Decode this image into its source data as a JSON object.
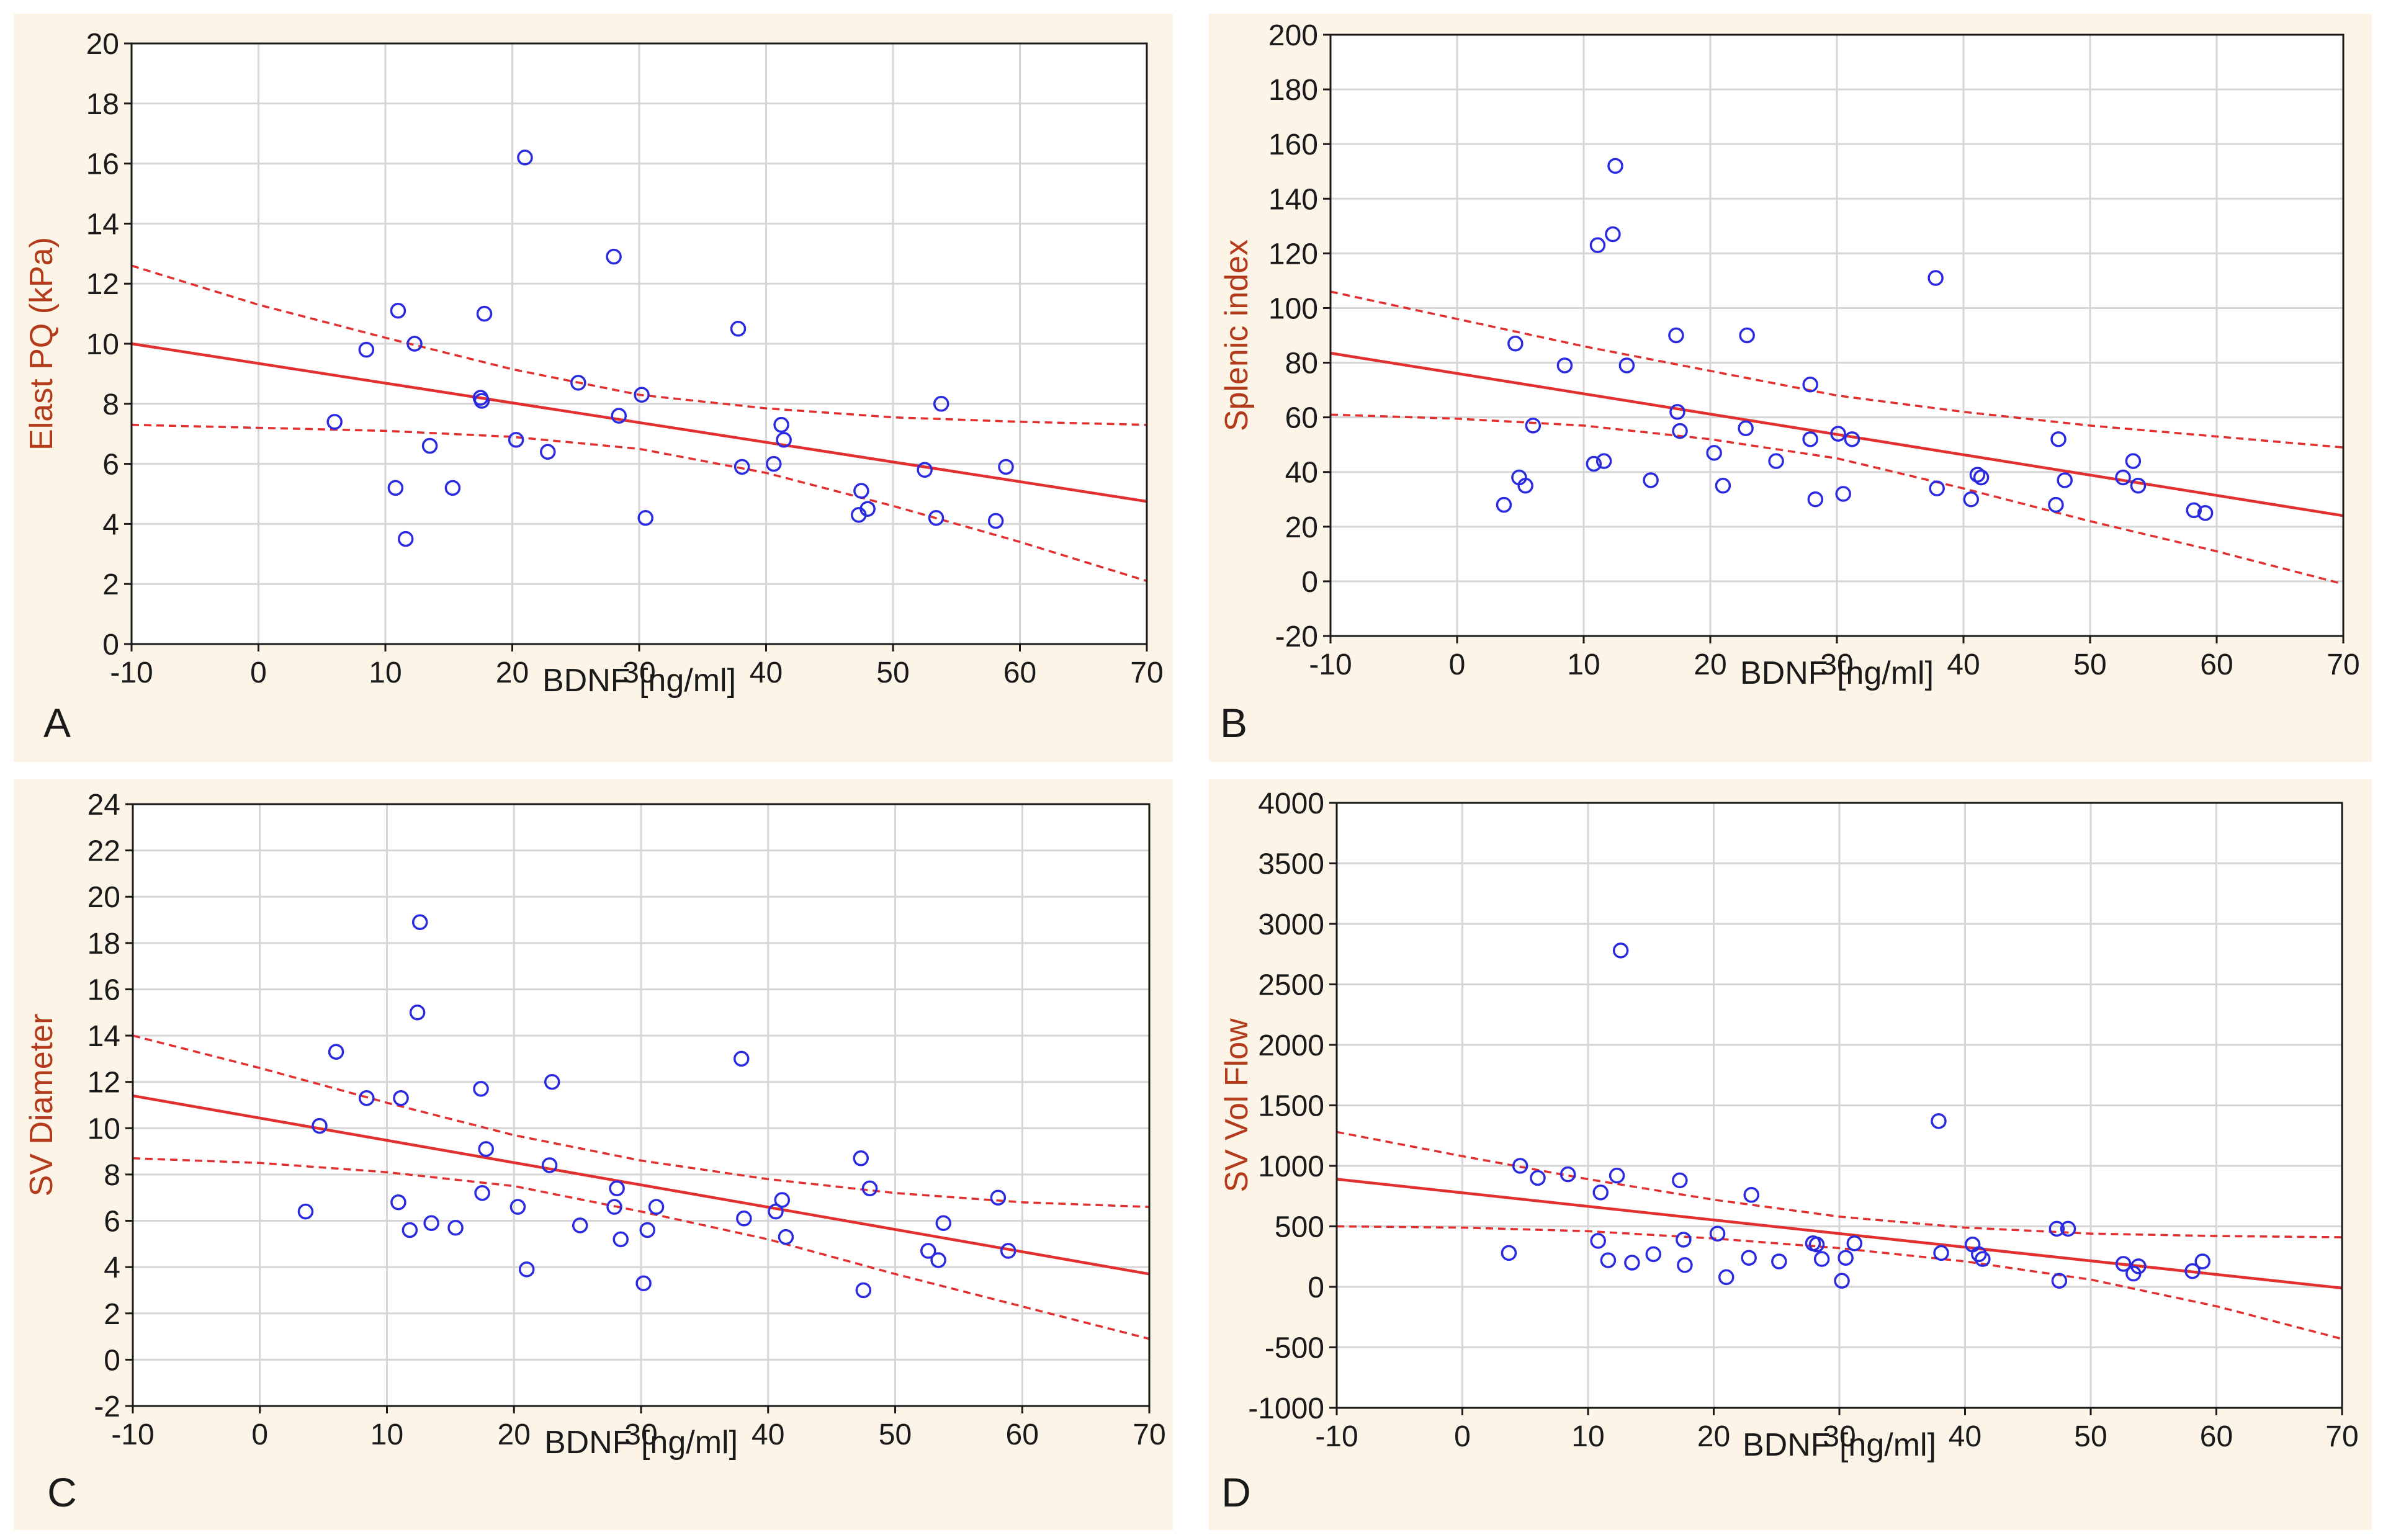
{
  "colors": {
    "panel_background": "#fcf4e6",
    "plot_background": "#ffffff",
    "grid": "#d6d6d6",
    "axis": "#1a1a1a",
    "point": "#2a2ae0",
    "fit": "#e23030",
    "ylabel": "#b33a1a"
  },
  "chart_data": [
    {
      "type": "scatter",
      "panel_letter": "A",
      "xlabel": "BDNF [ng/ml]",
      "ylabel": "Elast PQ (kPa)",
      "xlim": [
        -10,
        70
      ],
      "ylim": [
        0,
        20
      ],
      "xticks": [
        "-10",
        "0",
        "10",
        "20",
        "30",
        "40",
        "50",
        "60",
        "70"
      ],
      "yticks": [
        "0",
        "2",
        "4",
        "6",
        "8",
        "10",
        "12",
        "14",
        "16",
        "18",
        "20"
      ],
      "grid": true,
      "points": [
        [
          6,
          7.4
        ],
        [
          8.5,
          9.8
        ],
        [
          10.8,
          5.2
        ],
        [
          11,
          11.1
        ],
        [
          11.6,
          3.5
        ],
        [
          12.3,
          10
        ],
        [
          13.5,
          6.6
        ],
        [
          15.3,
          5.2
        ],
        [
          17.5,
          8.2
        ],
        [
          17.6,
          8.1
        ],
        [
          17.8,
          11
        ],
        [
          20.3,
          6.8
        ],
        [
          21,
          16.2
        ],
        [
          22.8,
          6.4
        ],
        [
          25.2,
          8.7
        ],
        [
          28,
          12.9
        ],
        [
          28.4,
          7.6
        ],
        [
          30.2,
          8.3
        ],
        [
          30.5,
          4.2
        ],
        [
          37.8,
          10.5
        ],
        [
          38.1,
          5.9
        ],
        [
          40.6,
          6
        ],
        [
          41.2,
          7.3
        ],
        [
          41.4,
          6.8
        ],
        [
          47.3,
          4.3
        ],
        [
          47.5,
          5.1
        ],
        [
          48,
          4.5
        ],
        [
          52.5,
          5.8
        ],
        [
          53.4,
          4.2
        ],
        [
          53.8,
          8
        ],
        [
          58.1,
          4.1
        ],
        [
          58.9,
          5.9
        ]
      ],
      "fit": {
        "x": [
          -10,
          70
        ],
        "y": [
          10,
          4.75
        ]
      },
      "ci_upper": [
        [
          -10,
          12.6
        ],
        [
          0,
          11.3
        ],
        [
          10,
          10.2
        ],
        [
          20,
          9.15
        ],
        [
          30,
          8.3
        ],
        [
          40,
          7.85
        ],
        [
          50,
          7.55
        ],
        [
          60,
          7.4
        ],
        [
          70,
          7.3
        ]
      ],
      "ci_lower": [
        [
          -10,
          7.3
        ],
        [
          0,
          7.2
        ],
        [
          10,
          7.1
        ],
        [
          20,
          6.9
        ],
        [
          30,
          6.5
        ],
        [
          40,
          5.7
        ],
        [
          50,
          4.6
        ],
        [
          60,
          3.4
        ],
        [
          70,
          2.1
        ]
      ]
    },
    {
      "type": "scatter",
      "panel_letter": "B",
      "xlabel": "BDNF [ng/ml]",
      "ylabel": "Splenic index",
      "xlim": [
        -10,
        70
      ],
      "ylim": [
        -20,
        200
      ],
      "xticks": [
        "-10",
        "0",
        "10",
        "20",
        "30",
        "40",
        "50",
        "60",
        "70"
      ],
      "yticks": [
        "-20",
        "0",
        "20",
        "40",
        "60",
        "80",
        "100",
        "120",
        "140",
        "160",
        "180",
        "200"
      ],
      "grid": true,
      "points": [
        [
          3.7,
          28
        ],
        [
          4.6,
          87
        ],
        [
          4.9,
          38
        ],
        [
          5.4,
          35
        ],
        [
          6,
          57
        ],
        [
          8.5,
          79
        ],
        [
          10.8,
          43
        ],
        [
          11.1,
          123
        ],
        [
          11.6,
          44
        ],
        [
          12.3,
          127
        ],
        [
          12.5,
          152
        ],
        [
          13.4,
          79
        ],
        [
          15.3,
          37
        ],
        [
          17.3,
          90
        ],
        [
          17.4,
          62
        ],
        [
          17.6,
          55
        ],
        [
          20.3,
          47
        ],
        [
          21,
          35
        ],
        [
          22.8,
          56
        ],
        [
          22.9,
          90
        ],
        [
          25.2,
          44
        ],
        [
          27.9,
          72
        ],
        [
          27.9,
          52
        ],
        [
          28.3,
          30
        ],
        [
          30.1,
          54
        ],
        [
          30.5,
          32
        ],
        [
          31.2,
          52
        ],
        [
          37.8,
          111
        ],
        [
          37.9,
          34
        ],
        [
          40.6,
          30
        ],
        [
          41.1,
          39
        ],
        [
          41.4,
          38
        ],
        [
          47.3,
          28
        ],
        [
          47.5,
          52
        ],
        [
          48,
          37
        ],
        [
          52.6,
          38
        ],
        [
          53.4,
          44
        ],
        [
          53.8,
          35
        ],
        [
          58.2,
          26
        ],
        [
          59.1,
          25
        ]
      ],
      "fit": {
        "x": [
          -10,
          70
        ],
        "y": [
          83.5,
          24
        ]
      },
      "ci_upper": [
        [
          -10,
          106
        ],
        [
          0,
          96
        ],
        [
          10,
          86
        ],
        [
          20,
          77
        ],
        [
          30,
          68
        ],
        [
          40,
          62
        ],
        [
          50,
          57
        ],
        [
          60,
          53
        ],
        [
          70,
          49
        ]
      ],
      "ci_lower": [
        [
          -10,
          61
        ],
        [
          0,
          59.5
        ],
        [
          10,
          57
        ],
        [
          20,
          52
        ],
        [
          30,
          45
        ],
        [
          40,
          34
        ],
        [
          50,
          22
        ],
        [
          60,
          11
        ],
        [
          70,
          -1
        ]
      ]
    },
    {
      "type": "scatter",
      "panel_letter": "C",
      "xlabel": "BDNF [ng/ml]",
      "ylabel": "SV Diameter",
      "xlim": [
        -10,
        70
      ],
      "ylim": [
        -2,
        24
      ],
      "xticks": [
        "-10",
        "0",
        "10",
        "20",
        "30",
        "40",
        "50",
        "60",
        "70"
      ],
      "yticks": [
        "-2",
        "0",
        "2",
        "4",
        "6",
        "8",
        "10",
        "12",
        "14",
        "16",
        "18",
        "20",
        "22",
        "24"
      ],
      "grid": true,
      "points": [
        [
          3.6,
          6.4
        ],
        [
          4.7,
          10.1
        ],
        [
          6,
          13.3
        ],
        [
          8.4,
          11.3
        ],
        [
          10.9,
          6.8
        ],
        [
          11.1,
          11.3
        ],
        [
          11.8,
          5.6
        ],
        [
          12.4,
          15
        ],
        [
          12.6,
          18.9
        ],
        [
          13.5,
          5.9
        ],
        [
          15.4,
          5.7
        ],
        [
          17.4,
          11.7
        ],
        [
          17.5,
          7.2
        ],
        [
          17.8,
          9.1
        ],
        [
          20.3,
          6.6
        ],
        [
          21,
          3.9
        ],
        [
          22.8,
          8.4
        ],
        [
          23,
          12
        ],
        [
          25.2,
          5.8
        ],
        [
          27.9,
          6.6
        ],
        [
          28.1,
          7.4
        ],
        [
          28.4,
          5.2
        ],
        [
          30.2,
          3.3
        ],
        [
          30.5,
          5.6
        ],
        [
          31.2,
          6.6
        ],
        [
          37.9,
          13
        ],
        [
          38.1,
          6.1
        ],
        [
          40.6,
          6.4
        ],
        [
          41.1,
          6.9
        ],
        [
          41.4,
          5.3
        ],
        [
          47.3,
          8.7
        ],
        [
          47.5,
          3
        ],
        [
          48,
          7.4
        ],
        [
          52.6,
          4.7
        ],
        [
          53.4,
          4.3
        ],
        [
          53.8,
          5.9
        ],
        [
          58.1,
          7
        ],
        [
          58.9,
          4.7
        ]
      ],
      "fit": {
        "x": [
          -10,
          70
        ],
        "y": [
          11.4,
          3.7
        ]
      },
      "ci_upper": [
        [
          -10,
          14
        ],
        [
          0,
          12.6
        ],
        [
          10,
          11.1
        ],
        [
          20,
          9.7
        ],
        [
          30,
          8.6
        ],
        [
          40,
          7.8
        ],
        [
          50,
          7.2
        ],
        [
          60,
          6.8
        ],
        [
          70,
          6.6
        ]
      ],
      "ci_lower": [
        [
          -10,
          8.7
        ],
        [
          0,
          8.5
        ],
        [
          10,
          8.1
        ],
        [
          20,
          7.5
        ],
        [
          30,
          6.4
        ],
        [
          40,
          5.2
        ],
        [
          50,
          3.7
        ],
        [
          60,
          2.3
        ],
        [
          70,
          0.9
        ]
      ]
    },
    {
      "type": "scatter",
      "panel_letter": "D",
      "xlabel": "BDNF [ng/ml]",
      "ylabel": "SV Vol Flow",
      "xlim": [
        -10,
        70
      ],
      "ylim": [
        -1000,
        4000
      ],
      "xticks": [
        "-10",
        "0",
        "10",
        "20",
        "30",
        "40",
        "50",
        "60",
        "70"
      ],
      "yticks": [
        "-1000",
        "-500",
        "0",
        "500",
        "1000",
        "1500",
        "2000",
        "2500",
        "3000",
        "3500",
        "4000"
      ],
      "grid": true,
      "points": [
        [
          3.7,
          280
        ],
        [
          4.6,
          1000
        ],
        [
          6,
          900
        ],
        [
          8.4,
          930
        ],
        [
          10.8,
          380
        ],
        [
          11,
          780
        ],
        [
          11.6,
          220
        ],
        [
          12.3,
          920
        ],
        [
          12.6,
          2780
        ],
        [
          13.5,
          200
        ],
        [
          15.2,
          270
        ],
        [
          17.3,
          880
        ],
        [
          17.6,
          390
        ],
        [
          17.7,
          180
        ],
        [
          20.3,
          440
        ],
        [
          21,
          80
        ],
        [
          22.8,
          240
        ],
        [
          23,
          760
        ],
        [
          25.2,
          210
        ],
        [
          27.9,
          360
        ],
        [
          28.2,
          350
        ],
        [
          28.6,
          230
        ],
        [
          30.2,
          50
        ],
        [
          30.5,
          240
        ],
        [
          31.2,
          360
        ],
        [
          37.9,
          1370
        ],
        [
          38.1,
          280
        ],
        [
          40.6,
          350
        ],
        [
          41.1,
          270
        ],
        [
          41.4,
          230
        ],
        [
          47.3,
          480
        ],
        [
          47.5,
          50
        ],
        [
          48.2,
          480
        ],
        [
          52.6,
          190
        ],
        [
          53.4,
          110
        ],
        [
          53.8,
          170
        ],
        [
          58.1,
          130
        ],
        [
          58.9,
          210
        ]
      ],
      "fit": {
        "x": [
          -10,
          70
        ],
        "y": [
          890,
          -10
        ]
      },
      "ci_upper": [
        [
          -10,
          1280
        ],
        [
          0,
          1080
        ],
        [
          10,
          890
        ],
        [
          20,
          720
        ],
        [
          30,
          580
        ],
        [
          40,
          490
        ],
        [
          50,
          440
        ],
        [
          60,
          420
        ],
        [
          70,
          410
        ]
      ],
      "ci_lower": [
        [
          -10,
          500
        ],
        [
          0,
          490
        ],
        [
          10,
          460
        ],
        [
          20,
          400
        ],
        [
          30,
          320
        ],
        [
          40,
          210
        ],
        [
          50,
          60
        ],
        [
          60,
          -160
        ],
        [
          70,
          -430
        ]
      ]
    }
  ]
}
